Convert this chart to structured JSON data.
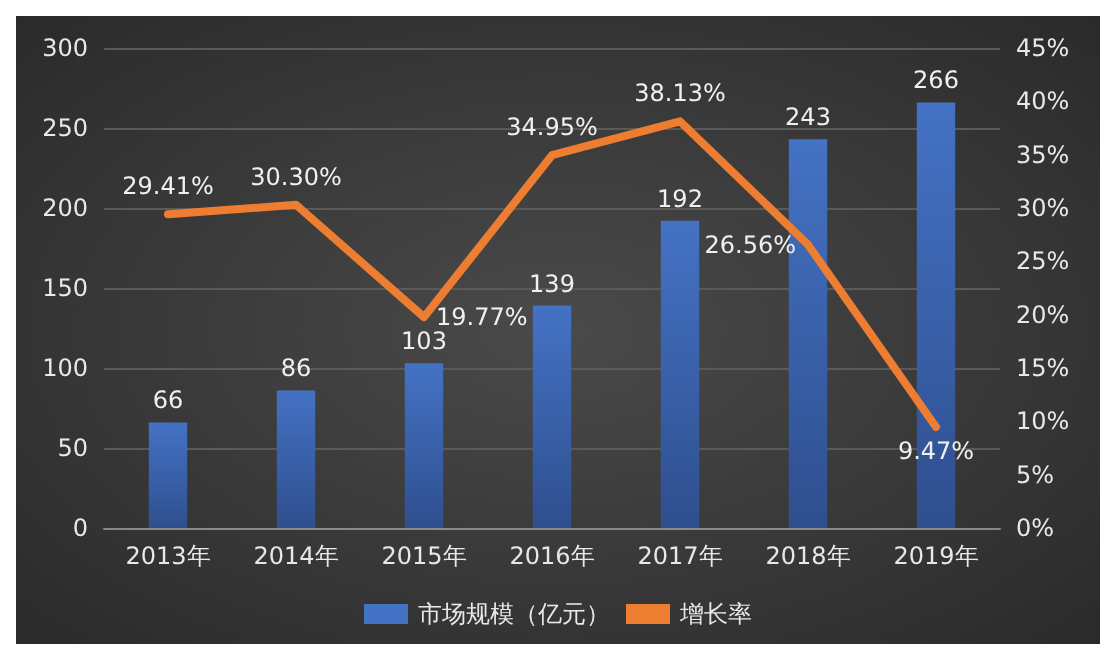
{
  "chart_data": {
    "type": "bar",
    "categories": [
      "2013年",
      "2014年",
      "2015年",
      "2016年",
      "2017年",
      "2018年",
      "2019年"
    ],
    "series": [
      {
        "name": "市场规模（亿元）",
        "color": "#4472c4",
        "values": [
          66,
          86,
          103,
          139,
          192,
          243,
          266
        ],
        "value_labels": [
          "66",
          "86",
          "103",
          "139",
          "192",
          "243",
          "266"
        ]
      },
      {
        "name": "增长率",
        "type": "line",
        "axis": "y2",
        "color": "#ed7d31",
        "values": [
          29.41,
          30.3,
          19.77,
          34.95,
          38.13,
          26.56,
          9.47
        ],
        "value_labels": [
          "29.41%",
          "30.30%",
          "19.77%",
          "34.95%",
          "38.13%",
          "26.56%",
          "9.47%"
        ]
      }
    ],
    "ylim": [
      0,
      300
    ],
    "yticks": [
      0,
      50,
      100,
      150,
      200,
      250,
      300
    ],
    "y2lim": [
      0,
      45
    ],
    "y2ticks": [
      {
        "value": 0,
        "label": "0%"
      },
      {
        "value": 5,
        "label": "5%"
      },
      {
        "value": 10,
        "label": "10%"
      },
      {
        "value": 15,
        "label": "15%"
      },
      {
        "value": 20,
        "label": "20%"
      },
      {
        "value": 25,
        "label": "25%"
      },
      {
        "value": 30,
        "label": "30%"
      },
      {
        "value": 35,
        "label": "35%"
      },
      {
        "value": 40,
        "label": "40%"
      },
      {
        "value": 45,
        "label": "45%"
      }
    ],
    "grid": "y",
    "legend": "bottom",
    "marker": "none",
    "line_style": "solid"
  }
}
